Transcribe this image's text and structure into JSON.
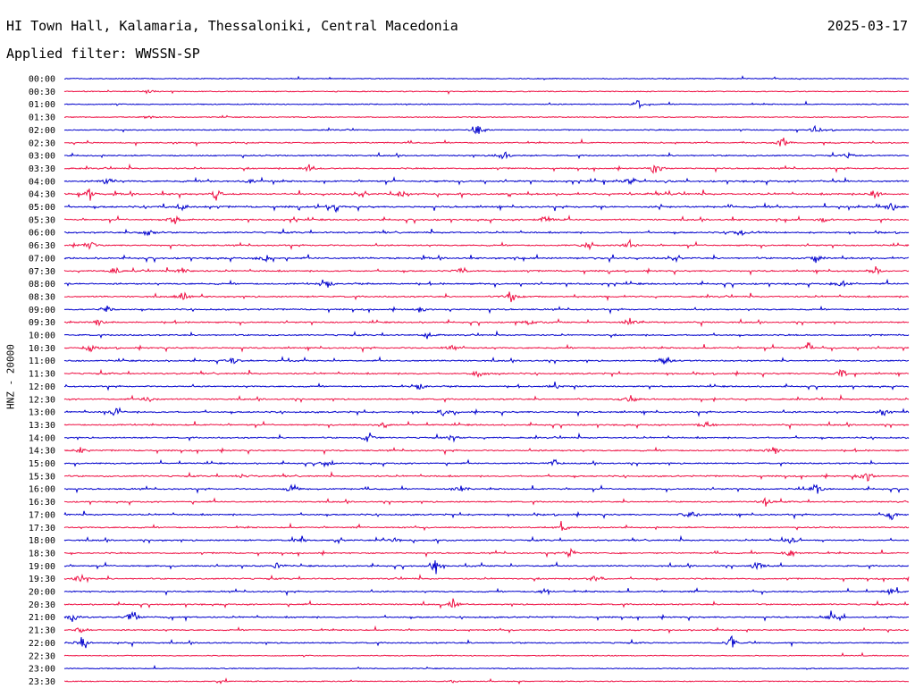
{
  "header": {
    "station": "HI Town Hall, Kalamaria, Thessaloniki, Central Macedonia",
    "date": "2025-03-17",
    "filter": "Applied filter: WWSSN-SP"
  },
  "chart_data": {
    "type": "line",
    "ylabel": "HNZ - 20000",
    "row_labels": [
      "00:00",
      "00:30",
      "01:00",
      "01:30",
      "02:00",
      "02:30",
      "03:00",
      "03:30",
      "04:00",
      "04:30",
      "05:00",
      "05:30",
      "06:00",
      "06:30",
      "07:00",
      "07:30",
      "08:00",
      "08:30",
      "09:00",
      "09:30",
      "10:00",
      "10:30",
      "11:00",
      "11:30",
      "12:00",
      "12:30",
      "13:00",
      "13:30",
      "14:00",
      "14:30",
      "15:00",
      "15:30",
      "16:00",
      "16:30",
      "17:00",
      "17:30",
      "18:00",
      "18:30",
      "19:00",
      "19:30",
      "20:00",
      "20:30",
      "21:00",
      "21:30",
      "22:00",
      "22:30",
      "23:00",
      "23:30"
    ],
    "colors": [
      "#0000cc",
      "#ee1144"
    ],
    "row_activity": [
      0.1,
      0.1,
      0.15,
      0.1,
      0.25,
      0.3,
      0.4,
      0.45,
      0.7,
      0.75,
      0.8,
      0.6,
      0.55,
      0.5,
      0.7,
      0.55,
      0.65,
      0.55,
      0.5,
      0.5,
      0.45,
      0.55,
      0.5,
      0.55,
      0.45,
      0.5,
      0.6,
      0.5,
      0.5,
      0.5,
      0.45,
      0.5,
      0.5,
      0.45,
      0.55,
      0.4,
      0.5,
      0.45,
      0.5,
      0.45,
      0.45,
      0.45,
      0.5,
      0.35,
      0.4,
      0.1,
      0.1,
      0.15
    ],
    "bursts": [
      [],
      [
        [
          0.1,
          0.3
        ]
      ],
      [
        [
          0.68,
          0.6
        ]
      ],
      [
        [
          0.1,
          0.3
        ]
      ],
      [
        [
          0.49,
          1.0
        ],
        [
          0.89,
          0.6
        ]
      ],
      [
        [
          0.85,
          0.9
        ]
      ],
      [
        [
          0.52,
          0.9
        ],
        [
          0.93,
          0.6
        ]
      ],
      [
        [
          0.29,
          0.6
        ],
        [
          0.7,
          1.0
        ]
      ],
      [
        [
          0.05,
          1.0
        ],
        [
          0.67,
          1.0
        ],
        [
          0.22,
          0.6
        ]
      ],
      [
        [
          0.03,
          0.9
        ],
        [
          0.18,
          0.8
        ],
        [
          0.4,
          0.7
        ],
        [
          0.96,
          0.8
        ]
      ],
      [
        [
          0.32,
          0.9
        ],
        [
          0.14,
          0.7
        ],
        [
          0.98,
          0.8
        ]
      ],
      [
        [
          0.13,
          0.8
        ],
        [
          0.57,
          0.6
        ],
        [
          0.9,
          0.6
        ]
      ],
      [
        [
          0.1,
          0.8
        ],
        [
          0.8,
          0.7
        ]
      ],
      [
        [
          0.62,
          0.8
        ],
        [
          0.67,
          0.6
        ],
        [
          0.03,
          0.6
        ]
      ],
      [
        [
          0.24,
          0.9
        ],
        [
          0.89,
          0.7
        ]
      ],
      [
        [
          0.06,
          0.7
        ],
        [
          0.14,
          0.6
        ],
        [
          0.47,
          0.6
        ],
        [
          0.96,
          0.7
        ]
      ],
      [
        [
          0.31,
          1.0
        ],
        [
          0.92,
          0.6
        ]
      ],
      [
        [
          0.14,
          0.7
        ],
        [
          0.53,
          0.6
        ]
      ],
      [
        [
          0.05,
          0.6
        ],
        [
          0.42,
          0.6
        ]
      ],
      [
        [
          0.04,
          0.6
        ],
        [
          0.55,
          0.6
        ],
        [
          0.67,
          0.7
        ]
      ],
      [
        [
          0.43,
          0.5
        ]
      ],
      [
        [
          0.03,
          0.8
        ],
        [
          0.46,
          0.6
        ],
        [
          0.88,
          0.7
        ]
      ],
      [
        [
          0.2,
          0.6
        ],
        [
          0.71,
          0.9
        ]
      ],
      [
        [
          0.49,
          0.8
        ],
        [
          0.92,
          0.7
        ]
      ],
      [
        [
          0.42,
          0.7
        ],
        [
          0.58,
          0.5
        ]
      ],
      [
        [
          0.67,
          0.9
        ],
        [
          0.1,
          0.5
        ]
      ],
      [
        [
          0.06,
          0.6
        ],
        [
          0.45,
          0.8
        ],
        [
          0.97,
          0.8
        ]
      ],
      [
        [
          0.76,
          0.8
        ],
        [
          0.38,
          0.6
        ]
      ],
      [
        [
          0.36,
          0.9
        ],
        [
          0.46,
          0.8
        ]
      ],
      [
        [
          0.02,
          0.7
        ],
        [
          0.84,
          0.8
        ]
      ],
      [
        [
          0.31,
          0.6
        ],
        [
          0.58,
          0.6
        ]
      ],
      [
        [
          0.21,
          0.7
        ],
        [
          0.95,
          0.9
        ]
      ],
      [
        [
          0.27,
          0.9
        ],
        [
          0.47,
          0.8
        ],
        [
          0.89,
          0.8
        ]
      ],
      [
        [
          0.83,
          0.6
        ]
      ],
      [
        [
          0.74,
          1.0
        ],
        [
          0.98,
          0.8
        ]
      ],
      [
        [
          0.59,
          0.6
        ]
      ],
      [
        [
          0.28,
          0.6
        ],
        [
          0.39,
          0.8
        ],
        [
          0.86,
          0.7
        ]
      ],
      [
        [
          0.6,
          0.7
        ],
        [
          0.86,
          0.8
        ]
      ],
      [
        [
          0.25,
          0.6
        ],
        [
          0.44,
          0.9
        ],
        [
          0.82,
          0.7
        ]
      ],
      [
        [
          0.02,
          0.8
        ],
        [
          0.63,
          0.7
        ]
      ],
      [
        [
          0.57,
          0.7
        ],
        [
          0.98,
          0.6
        ]
      ],
      [
        [
          0.46,
          0.7
        ]
      ],
      [
        [
          0.01,
          0.7
        ],
        [
          0.08,
          0.6
        ],
        [
          0.91,
          0.9
        ]
      ],
      [
        [
          0.02,
          0.6
        ]
      ],
      [
        [
          0.02,
          1.0
        ],
        [
          0.79,
          0.8
        ]
      ],
      [],
      [],
      [
        [
          0.46,
          0.3
        ]
      ]
    ]
  }
}
